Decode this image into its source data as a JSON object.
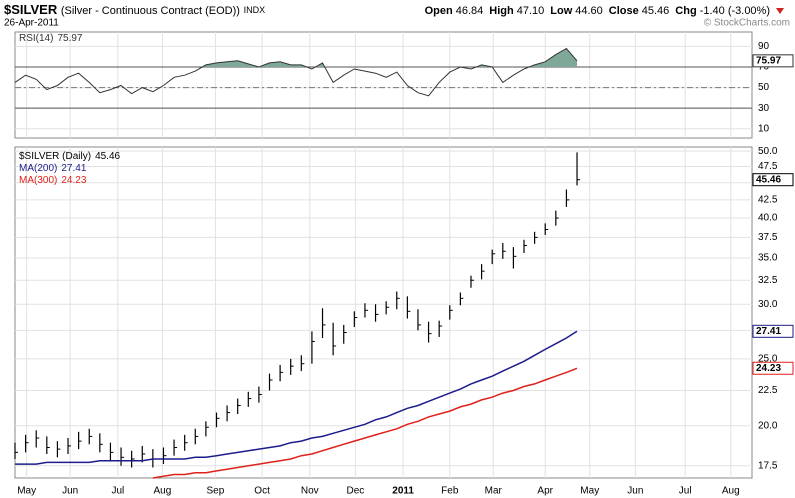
{
  "header": {
    "symbol": "$SILVER",
    "description": "(Silver - Continuous Contract (EOD))",
    "exchange": "INDX",
    "date": "26-Apr-2011",
    "quote": [
      {
        "label": "Open",
        "value": "46.84"
      },
      {
        "label": "High",
        "value": "47.10"
      },
      {
        "label": "Low",
        "value": "44.60"
      },
      {
        "label": "Close",
        "value": "45.46"
      },
      {
        "label": "Chg",
        "value": "-1.40 (-3.00%)"
      }
    ],
    "watermark": "© StockCharts.com"
  },
  "chart_data": [
    {
      "type": "rsi",
      "title": "RSI(14)",
      "xlim": [
        0,
        69.5
      ],
      "ylim": [
        1,
        104
      ],
      "yticks": [
        10,
        30,
        50,
        70,
        90
      ],
      "levels": [
        30,
        70
      ],
      "midline": 50,
      "shade_above": 70,
      "shade_color": "#7fa898",
      "series": [
        {
          "name": "RSI(14)",
          "color": "#333333",
          "values": [
            55,
            62,
            58,
            48,
            52,
            60,
            64,
            55,
            45,
            48,
            52,
            44,
            50,
            46,
            52,
            60,
            62,
            66,
            72,
            74,
            75,
            76,
            73,
            70,
            74,
            75,
            72,
            72,
            68,
            74,
            55,
            62,
            68,
            66,
            64,
            60,
            65,
            52,
            45,
            42,
            55,
            65,
            70,
            68,
            72,
            70,
            55,
            62,
            68,
            72,
            75,
            82,
            88,
            75.97
          ]
        }
      ]
    },
    {
      "type": "stock",
      "xlim": [
        0,
        69.5
      ],
      "ylim": [
        16.8,
        50.7
      ],
      "log_scale": true,
      "grid": true,
      "yticks": [
        {
          "value": 50,
          "label": "50.0"
        },
        47.5,
        {
          "value": 45,
          "label": "45.0"
        },
        42.5,
        {
          "value": 40,
          "label": "40.0"
        },
        37.5,
        {
          "value": 35,
          "label": "35.0"
        },
        32.5,
        {
          "value": 30,
          "label": "30.0"
        },
        27.5,
        {
          "value": 25,
          "label": "25.0"
        },
        22.5,
        {
          "value": 20,
          "label": "20.0"
        },
        17.5
      ],
      "xticks": [
        {
          "value": 1.1,
          "label": "May"
        },
        {
          "value": 5.2,
          "label": "Jun"
        },
        {
          "value": 9.7,
          "label": "Jul"
        },
        {
          "value": 13.9,
          "label": "Aug"
        },
        {
          "value": 18.9,
          "label": "Sep"
        },
        {
          "value": 23.3,
          "label": "Oct"
        },
        {
          "value": 27.8,
          "label": "Nov"
        },
        {
          "value": 32.1,
          "label": "Dec"
        },
        {
          "value": 36.6,
          "label": "2011"
        },
        {
          "value": 41.0,
          "label": "Feb"
        },
        {
          "value": 45.1,
          "label": "Mar"
        },
        {
          "value": 50.0,
          "label": "Apr"
        },
        {
          "value": 54.2,
          "label": "May"
        },
        {
          "value": 58.5,
          "label": "Jun"
        },
        {
          "value": 63.2,
          "label": "Jul"
        },
        {
          "value": 67.5,
          "label": "Aug"
        }
      ],
      "series": [
        {
          "name": "$SILVER (Daily)",
          "color": "#000000",
          "high": [
            18.9,
            19.4,
            19.7,
            19.3,
            19.0,
            19.2,
            19.6,
            19.8,
            19.5,
            18.9,
            18.6,
            18.4,
            18.7,
            18.5,
            18.6,
            19.1,
            19.4,
            19.8,
            20.3,
            20.9,
            21.4,
            21.9,
            22.4,
            22.8,
            23.8,
            24.5,
            25.0,
            25.3,
            27.4,
            29.6,
            28.2,
            28.0,
            29.3,
            30.1,
            30.0,
            30.3,
            31.3,
            30.8,
            29.5,
            28.3,
            28.4,
            29.9,
            31.2,
            33.0,
            34.3,
            36.0,
            36.8,
            36.3,
            37.2,
            38.2,
            39.3,
            41.0,
            44.0,
            49.8
          ],
          "low": [
            17.9,
            18.3,
            18.6,
            18.2,
            18.0,
            18.2,
            18.5,
            18.8,
            18.3,
            17.8,
            17.5,
            17.4,
            17.7,
            17.4,
            17.6,
            18.1,
            18.4,
            18.8,
            19.3,
            19.9,
            20.3,
            20.8,
            21.3,
            21.6,
            22.5,
            23.2,
            23.7,
            24.0,
            24.6,
            26.8,
            25.3,
            26.3,
            27.8,
            28.7,
            28.3,
            29.0,
            29.5,
            28.6,
            27.5,
            26.4,
            26.9,
            28.5,
            29.9,
            31.7,
            32.6,
            34.3,
            34.9,
            33.8,
            35.6,
            36.7,
            37.8,
            39.0,
            41.5,
            44.6
          ],
          "close": [
            18.3,
            18.9,
            19.2,
            18.6,
            18.5,
            18.7,
            19.0,
            19.3,
            18.8,
            18.3,
            18.0,
            17.9,
            18.2,
            17.9,
            18.1,
            18.6,
            18.9,
            19.3,
            19.9,
            20.5,
            20.9,
            21.4,
            21.9,
            22.2,
            23.3,
            23.9,
            24.4,
            24.6,
            26.5,
            28.0,
            26.1,
            27.3,
            28.7,
            29.4,
            29.0,
            29.7,
            30.6,
            29.3,
            28.0,
            27.2,
            27.9,
            29.4,
            30.6,
            32.5,
            33.5,
            35.5,
            35.8,
            35.2,
            36.5,
            37.5,
            38.5,
            40.0,
            42.5,
            45.46
          ]
        },
        {
          "name": "MA(200)",
          "color": "#1c1c8c",
          "values": [
            17.6,
            17.6,
            17.6,
            17.7,
            17.7,
            17.7,
            17.7,
            17.7,
            17.8,
            17.8,
            17.8,
            17.8,
            17.8,
            17.9,
            17.9,
            17.9,
            17.9,
            18.0,
            18.0,
            18.1,
            18.2,
            18.3,
            18.4,
            18.5,
            18.6,
            18.7,
            18.9,
            19.0,
            19.2,
            19.3,
            19.5,
            19.7,
            19.9,
            20.1,
            20.4,
            20.6,
            20.9,
            21.2,
            21.4,
            21.7,
            22.0,
            22.3,
            22.6,
            23.0,
            23.3,
            23.6,
            24.0,
            24.4,
            24.8,
            25.3,
            25.8,
            26.3,
            26.8,
            27.41
          ]
        },
        {
          "name": "MA(300)",
          "color": "#e0201b",
          "values": [
            null,
            null,
            null,
            null,
            null,
            null,
            null,
            null,
            null,
            null,
            null,
            null,
            null,
            16.8,
            16.9,
            17.0,
            17.0,
            17.1,
            17.1,
            17.2,
            17.3,
            17.4,
            17.5,
            17.6,
            17.7,
            17.8,
            17.9,
            18.1,
            18.2,
            18.4,
            18.6,
            18.8,
            19.0,
            19.2,
            19.4,
            19.6,
            19.8,
            20.1,
            20.3,
            20.6,
            20.8,
            21.0,
            21.3,
            21.5,
            21.8,
            22.0,
            22.3,
            22.5,
            22.8,
            23.0,
            23.3,
            23.6,
            23.9,
            24.23
          ]
        }
      ]
    }
  ]
}
